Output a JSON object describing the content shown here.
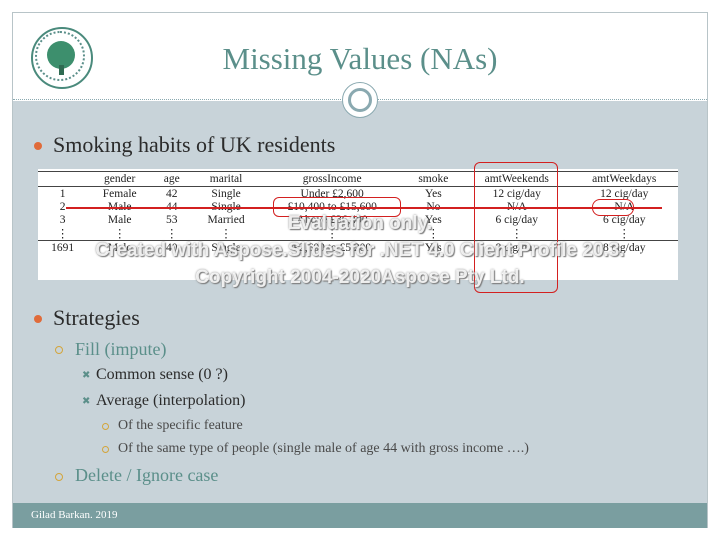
{
  "title": "Missing Values (NAs)",
  "bullets": {
    "b1": "Smoking habits of UK residents",
    "b2": "Strategies",
    "fill": "Fill (impute)",
    "common": "Common sense (0 ?)",
    "average": "Average (interpolation)",
    "specific": "Of the specific feature",
    "sametype": "Of the same type of people (single male of age 44 with gross income ….)",
    "delete": "Delete / Ignore case"
  },
  "table": {
    "headers": [
      "",
      "gender",
      "age",
      "marital",
      "grossIncome",
      "smoke",
      "amtWeekends",
      "amtWeekdays"
    ],
    "rows": [
      [
        "1",
        "Female",
        "42",
        "Single",
        "Under £2,600",
        "Yes",
        "12 cig/day",
        "12 cig/day"
      ],
      [
        "2",
        "Male",
        "44",
        "Single",
        "£10,400 to £15,600",
        "No",
        "N/A",
        "N/A"
      ],
      [
        "3",
        "Male",
        "53",
        "Married",
        "Above £36,400",
        "Yes",
        "6 cig/day",
        "6 cig/day"
      ],
      [
        "⋮",
        "⋮",
        "⋮",
        "⋮",
        "⋮",
        "⋮",
        "⋮",
        "⋮"
      ],
      [
        "1691",
        "Male",
        "40",
        "Single",
        "£2,600 to £5,200",
        "Yes",
        "8 cig/day",
        "8 cig/day"
      ]
    ]
  },
  "watermark": {
    "line1": "Evaluation only.",
    "line2": "Created with Aspose.Slides for .NET 4.0 Client Profile 20.3.",
    "line3": "Copyright 2004-2020Aspose Pty Ltd."
  },
  "footer": "Gilad Barkan. 2019",
  "colors": {
    "title": "#5b8f8a",
    "body_bg": "#c8d3d9",
    "footer_bg": "#7a9ea0",
    "highlight": "#d32020",
    "bullet": "#e06b3a"
  }
}
